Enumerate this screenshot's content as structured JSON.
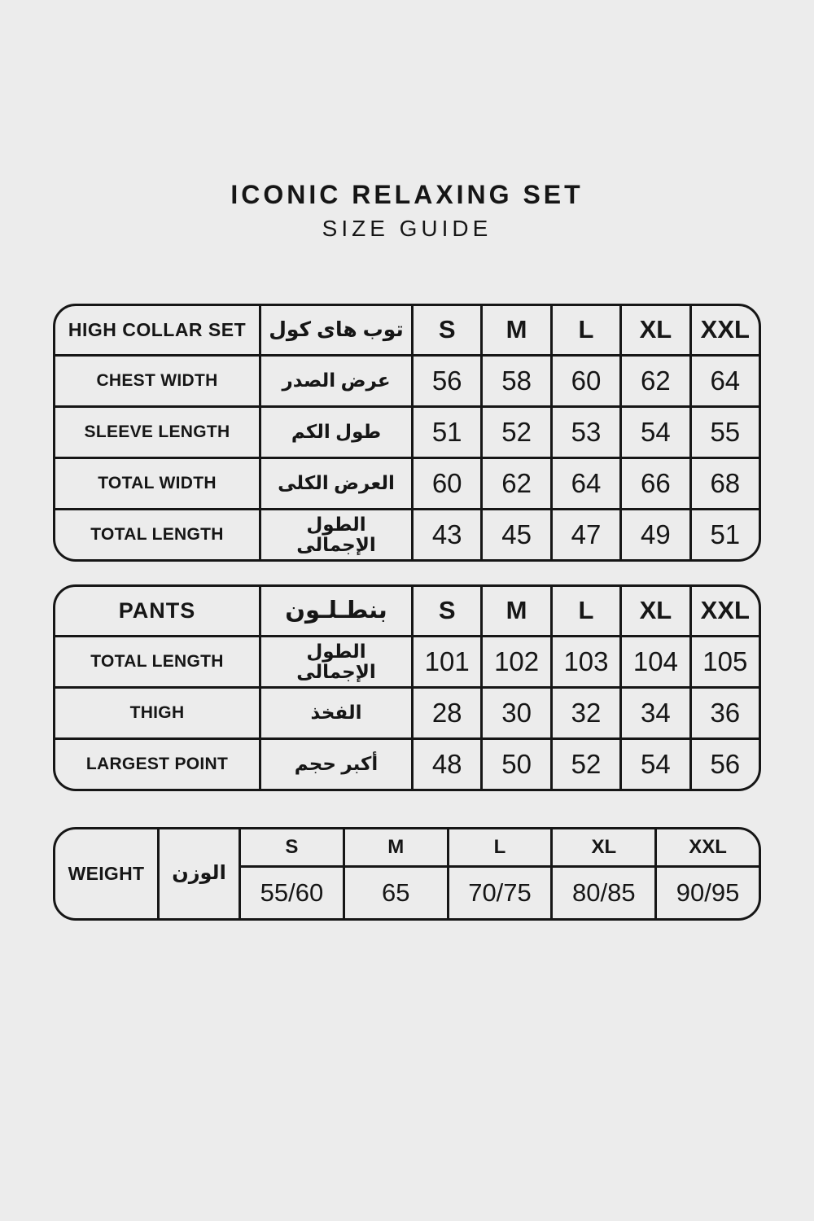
{
  "page": {
    "background": "#ececec",
    "border_color": "#161616",
    "text_color": "#161616"
  },
  "header": {
    "title": "ICONIC RELAXING SET",
    "subtitle": "SIZE GUIDE"
  },
  "sizes": [
    "S",
    "M",
    "L",
    "XL",
    "XXL"
  ],
  "tables": [
    {
      "title_en": "HIGH COLLAR SET",
      "title_ar": "توب هاى كول",
      "rows": [
        {
          "label_en": "CHEST WIDTH",
          "label_ar": "عرض الصدر",
          "values": [
            "56",
            "58",
            "60",
            "62",
            "64"
          ]
        },
        {
          "label_en": "SLEEVE LENGTH",
          "label_ar": "طول الكم",
          "values": [
            "51",
            "52",
            "53",
            "54",
            "55"
          ]
        },
        {
          "label_en": "TOTAL WIDTH",
          "label_ar": "العرض الكلى",
          "values": [
            "60",
            "62",
            "64",
            "66",
            "68"
          ]
        },
        {
          "label_en": "TOTAL LENGTH",
          "label_ar": "الطول الإجمالى",
          "values": [
            "43",
            "45",
            "47",
            "49",
            "51"
          ]
        }
      ]
    },
    {
      "title_en": "PANTS",
      "title_ar": "بنطـلـون",
      "rows": [
        {
          "label_en": "TOTAL LENGTH",
          "label_ar": "الطول الإجمالى",
          "values": [
            "101",
            "102",
            "103",
            "104",
            "105"
          ]
        },
        {
          "label_en": "THIGH",
          "label_ar": "الفخذ",
          "values": [
            "28",
            "30",
            "32",
            "34",
            "36"
          ]
        },
        {
          "label_en": "LARGEST POINT",
          "label_ar": "أكبر حجم",
          "values": [
            "48",
            "50",
            "52",
            "54",
            "56"
          ]
        }
      ]
    }
  ],
  "weight_table": {
    "label_en": "WEIGHT",
    "label_ar": "الوزن",
    "values": [
      "55/60",
      "65",
      "70/75",
      "80/85",
      "90/95"
    ]
  }
}
